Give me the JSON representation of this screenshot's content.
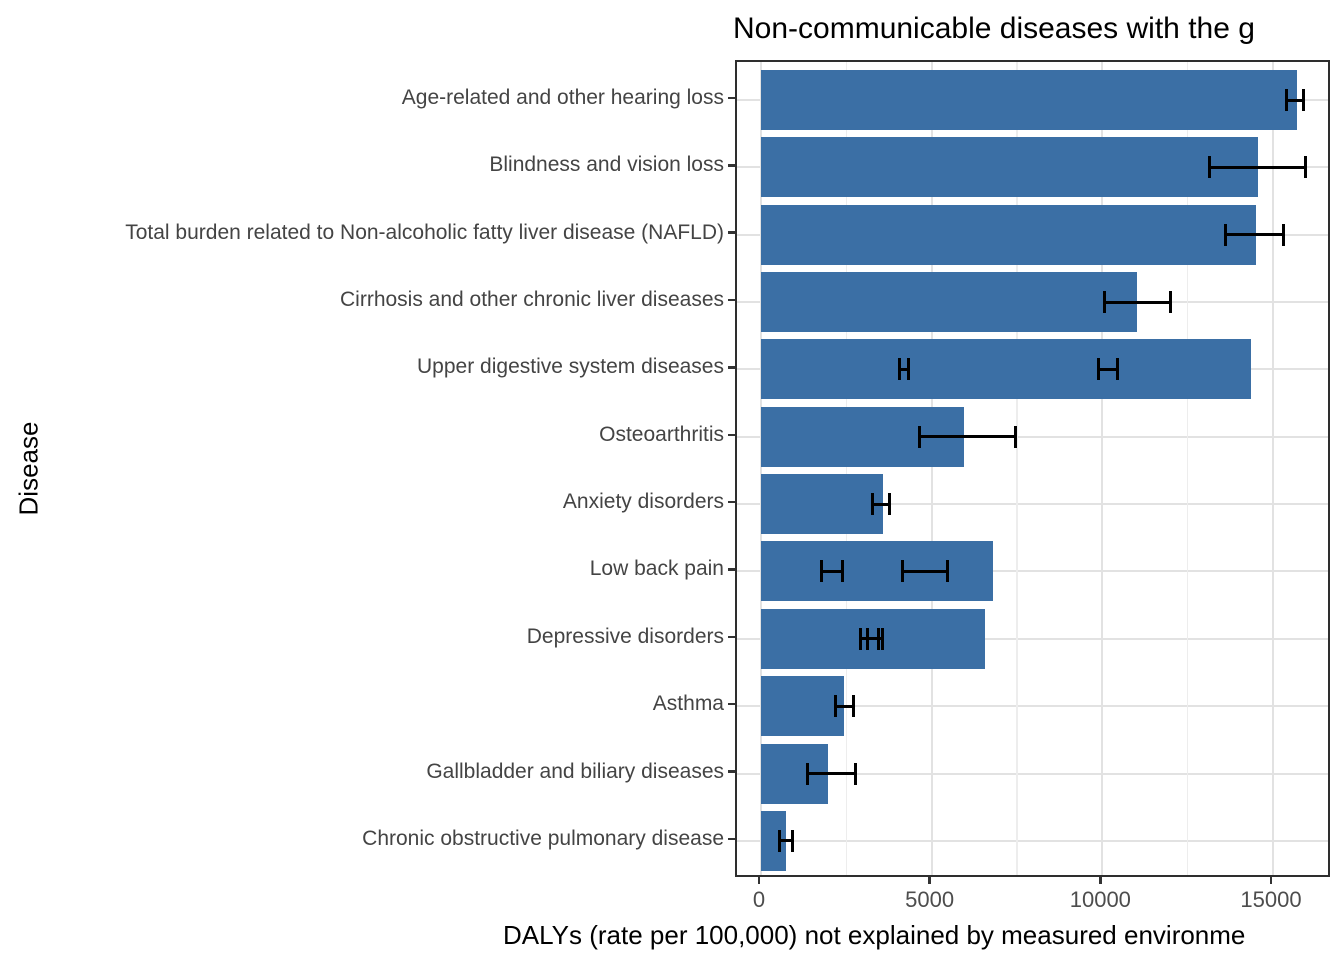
{
  "chart_data": {
    "type": "bar",
    "orientation": "horizontal",
    "title": "Non-communicable diseases with the g",
    "xlabel": "DALYs (rate per 100,000) not explained by measured environme",
    "ylabel": "Disease",
    "xticks": [
      0,
      5000,
      10000,
      15000
    ],
    "xtick_labels": [
      "0",
      "5000",
      "10000",
      "15000"
    ],
    "xlim": [
      -700,
      16750
    ],
    "minor_gridlines_x": [
      2500,
      7500,
      12500
    ],
    "grid": "on",
    "legend": "none",
    "bar_color": "#3b6fa5",
    "errorbar_color": "#000000",
    "categories": [
      "Age-related and other hearing loss",
      "Blindness and vision loss",
      "Total burden related to Non-alcoholic fatty liver disease (NAFLD)",
      "Cirrhosis and other chronic liver diseases",
      "Upper digestive system diseases",
      "Osteoarthritis",
      "Anxiety disorders",
      "Low back pain",
      "Depressive disorders",
      "Asthma",
      "Gallbladder and biliary diseases",
      "Chronic obstructive pulmonary disease"
    ],
    "values": [
      15700,
      14550,
      14500,
      11030,
      14370,
      5950,
      3570,
      6800,
      6550,
      2440,
      1960,
      740
    ],
    "error_bars": [
      [
        [
          15400,
          15900
        ]
      ],
      [
        [
          13150,
          15950
        ]
      ],
      [
        [
          13600,
          15300
        ]
      ],
      [
        [
          10050,
          12000
        ]
      ],
      [
        [
          4070,
          4310
        ],
        [
          9900,
          10440
        ]
      ],
      [
        [
          4630,
          7460
        ]
      ],
      [
        [
          3280,
          3760
        ]
      ],
      [
        [
          1770,
          2380
        ],
        [
          4140,
          5460
        ]
      ],
      [
        [
          2910,
          3450
        ],
        [
          3110,
          3570
        ]
      ],
      [
        [
          2180,
          2700
        ]
      ],
      [
        [
          1350,
          2770
        ]
      ],
      [
        [
          550,
          910
        ]
      ]
    ]
  }
}
